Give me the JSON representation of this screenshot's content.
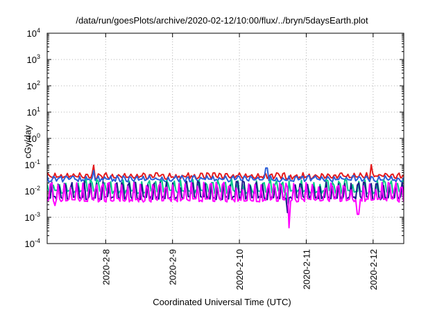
{
  "chart_data": {
    "type": "line",
    "title": "/data/run/goesPlots/archive/2020-02-12/10:00/flux/../bryn/5daysEarth.plot",
    "xlabel": "Coordinated Universal Time (UTC)",
    "ylabel": "cGy/day",
    "yscale": "log",
    "ylim": [
      0.0001,
      10000
    ],
    "xlim": [
      "2020-02-07 03:00",
      "2020-02-12 11:00"
    ],
    "grid": true,
    "yticks": [
      {
        "base": "10",
        "exp": "-4"
      },
      {
        "base": "10",
        "exp": "-3"
      },
      {
        "base": "10",
        "exp": "-2"
      },
      {
        "base": "10",
        "exp": "-1"
      },
      {
        "base": "10",
        "exp": "0"
      },
      {
        "base": "10",
        "exp": "1"
      },
      {
        "base": "10",
        "exp": "2"
      },
      {
        "base": "10",
        "exp": "3"
      },
      {
        "base": "10",
        "exp": "4"
      }
    ],
    "xticks": [
      "2020-2-8",
      "2020-2-9",
      "2020-2-10",
      "2020-2-11",
      "2020-2-12"
    ],
    "series": [
      {
        "color": "#e41a1c",
        "base": 0.033,
        "spike": 0.016,
        "spikes": [
          {
            "t": 0.7,
            "y": 0.095
          },
          {
            "t": 4.85,
            "y": 0.1
          }
        ]
      },
      {
        "color": "#2a5ed8",
        "base": 0.026,
        "spike": 0.012,
        "spikes": [
          {
            "t": 0.7,
            "y": 0.06
          },
          {
            "t": 3.28,
            "y": 0.075
          }
        ]
      },
      {
        "color": "#00c98a",
        "base": 0.0095,
        "spike": 0.014,
        "spikes": [
          {
            "t": 3.6,
            "y": 0.0035
          }
        ]
      },
      {
        "color": "#1a1a8a",
        "base": 0.0055,
        "spike": 0.014,
        "spikes": [
          {
            "t": 3.6,
            "y": 0.0015
          }
        ]
      },
      {
        "color": "#ff00ff",
        "base": 0.0045,
        "spike": 0.013,
        "spikes": [
          {
            "t": 3.62,
            "y": 0.0004
          },
          {
            "t": 4.65,
            "y": 0.0013
          },
          {
            "t": 0.12,
            "y": 0.0028
          }
        ]
      }
    ]
  }
}
